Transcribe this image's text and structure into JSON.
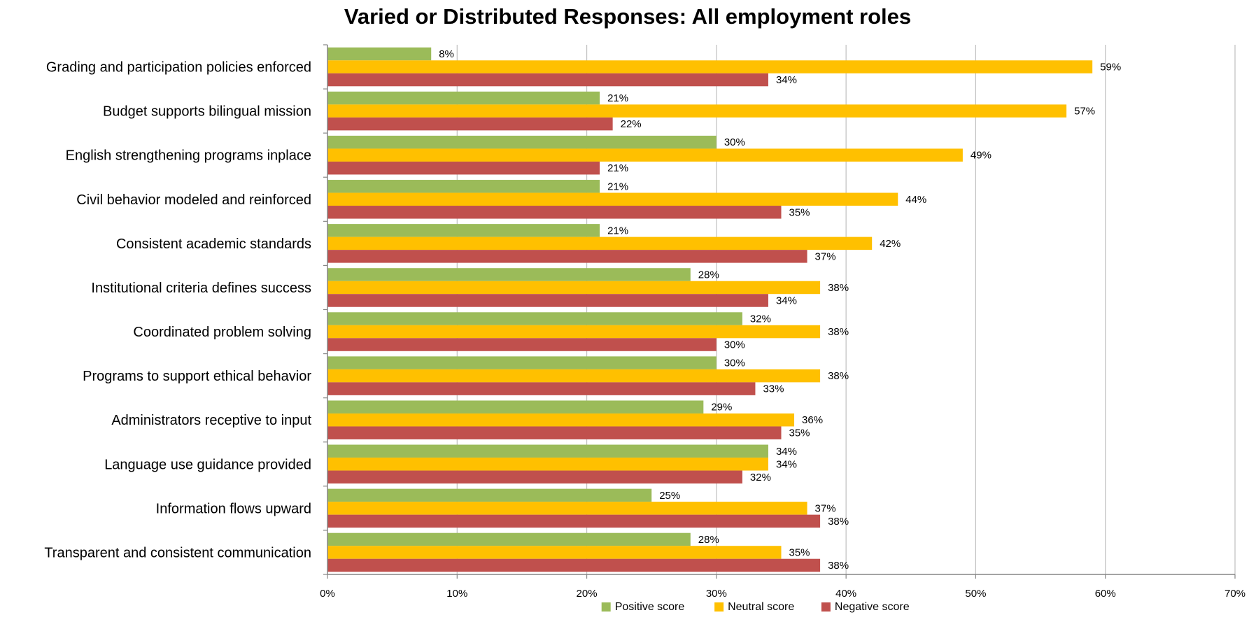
{
  "chart_data": {
    "type": "bar",
    "orientation": "horizontal",
    "title": "Varied or Distributed Responses: All employment roles",
    "xlabel": "",
    "ylabel": "",
    "xlim": [
      0,
      70
    ],
    "x_tick_values": [
      0,
      10,
      20,
      30,
      40,
      50,
      60,
      70
    ],
    "x_tick_labels": [
      "0%",
      "10%",
      "20%",
      "30%",
      "40%",
      "50%",
      "60%",
      "70%"
    ],
    "grid": true,
    "legend_position": "bottom",
    "categories": [
      "Grading and participation policies enforced",
      "Budget supports bilingual mission",
      "English strengthening programs inplace",
      "Civil behavior modeled and reinforced",
      "Consistent academic standards",
      "Institutional criteria defines success",
      "Coordinated problem solving",
      "Programs to support ethical behavior",
      "Administrators receptive to input",
      "Language use guidance provided",
      "Information flows upward",
      "Transparent and consistent communication"
    ],
    "series": [
      {
        "name": "Positive score",
        "color": "#9BBB59",
        "values": [
          8,
          21,
          30,
          21,
          21,
          28,
          32,
          30,
          29,
          34,
          25,
          28
        ],
        "labels": [
          "8%",
          "21%",
          "30%",
          "21%",
          "21%",
          "28%",
          "32%",
          "30%",
          "29%",
          "34%",
          "25%",
          "28%"
        ]
      },
      {
        "name": "Neutral score",
        "color": "#FFC000",
        "values": [
          59,
          57,
          49,
          44,
          42,
          38,
          38,
          38,
          36,
          34,
          37,
          35
        ],
        "labels": [
          "59%",
          "57%",
          "49%",
          "44%",
          "42%",
          "38%",
          "38%",
          "38%",
          "36%",
          "34%",
          "37%",
          "35%"
        ]
      },
      {
        "name": "Negative score",
        "color": "#C0504D",
        "values": [
          34,
          22,
          21,
          35,
          37,
          34,
          30,
          33,
          35,
          32,
          38,
          38
        ],
        "labels": [
          "34%",
          "22%",
          "21%",
          "35%",
          "37%",
          "34%",
          "30%",
          "33%",
          "35%",
          "32%",
          "38%",
          "38%"
        ]
      }
    ]
  }
}
